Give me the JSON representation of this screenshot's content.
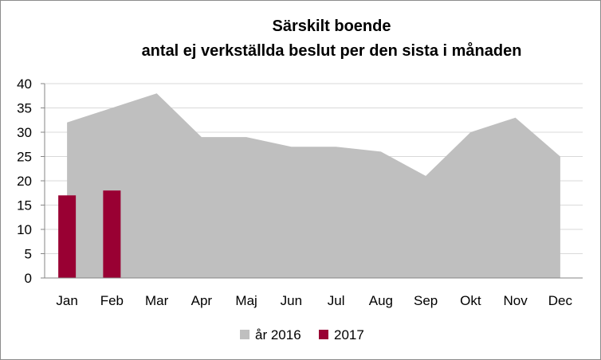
{
  "chart_data": {
    "type": "bar",
    "title": "Särskilt boende",
    "subtitle": "antal ej verkställda beslut per den sista i månaden",
    "categories": [
      "Jan",
      "Feb",
      "Mar",
      "Apr",
      "Maj",
      "Jun",
      "Jul",
      "Aug",
      "Sep",
      "Okt",
      "Nov",
      "Dec"
    ],
    "series": [
      {
        "name": "år 2016",
        "type": "area",
        "color": "#bfbfbf",
        "values": [
          32,
          35,
          38,
          29,
          29,
          27,
          27,
          26,
          21,
          30,
          33,
          25
        ]
      },
      {
        "name": "2017",
        "type": "bar",
        "color": "#990033",
        "values": [
          17,
          18,
          null,
          null,
          null,
          null,
          null,
          null,
          null,
          null,
          null,
          null
        ]
      }
    ],
    "ylim": [
      0,
      40
    ],
    "yticks": [
      "0",
      "5",
      "10",
      "15",
      "20",
      "25",
      "30",
      "35",
      "40"
    ],
    "grid": true,
    "legend": "bottom"
  }
}
